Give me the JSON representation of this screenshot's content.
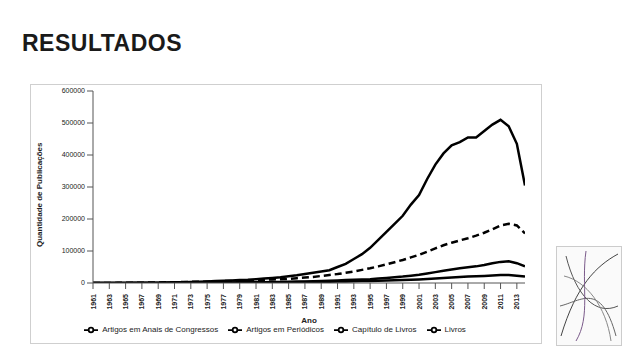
{
  "title": "RESULTADOS",
  "chart_data": {
    "type": "line",
    "x_label": "Ano",
    "y_label": "Quantidade de Publicações",
    "x": [
      1961,
      1962,
      1963,
      1964,
      1965,
      1966,
      1967,
      1968,
      1969,
      1970,
      1971,
      1972,
      1973,
      1974,
      1975,
      1976,
      1977,
      1978,
      1979,
      1980,
      1981,
      1982,
      1983,
      1984,
      1985,
      1986,
      1987,
      1988,
      1989,
      1990,
      1991,
      1992,
      1993,
      1994,
      1995,
      1996,
      1997,
      1998,
      1999,
      2000,
      2001,
      2002,
      2003,
      2004,
      2005,
      2006,
      2007,
      2008,
      2009,
      2010,
      2011,
      2012,
      2013,
      2014
    ],
    "xlim": [
      1961,
      2014
    ],
    "xticks": [
      1961,
      1963,
      1965,
      1967,
      1969,
      1971,
      1973,
      1975,
      1977,
      1979,
      1981,
      1983,
      1985,
      1987,
      1989,
      1991,
      1993,
      1995,
      1997,
      1999,
      2001,
      2003,
      2005,
      2007,
      2009,
      2011,
      2013
    ],
    "ylim": [
      0,
      600000
    ],
    "yticks": [
      0,
      100000,
      200000,
      300000,
      400000,
      500000,
      600000
    ],
    "grid": false,
    "legend": "bottom",
    "series": [
      {
        "name": "Artigos em Anais de Congressos",
        "color": "#000000",
        "line_style": "solid",
        "values": [
          0,
          0,
          0,
          0,
          0,
          500,
          500,
          1000,
          1000,
          1500,
          2000,
          2500,
          3000,
          4000,
          5000,
          6000,
          7000,
          8000,
          9000,
          10000,
          12000,
          14000,
          16000,
          18000,
          21000,
          24000,
          28000,
          32000,
          36000,
          40000,
          50000,
          60000,
          75000,
          90000,
          110000,
          135000,
          160000,
          185000,
          210000,
          245000,
          275000,
          325000,
          370000,
          405000,
          430000,
          440000,
          455000,
          455000,
          475000,
          495000,
          510000,
          490000,
          435000,
          305000
        ]
      },
      {
        "name": "Artigos em Periódicos",
        "color": "#000000",
        "line_style": "dashed",
        "values": [
          0,
          0,
          0,
          500,
          500,
          1000,
          1000,
          1500,
          1500,
          2000,
          2500,
          3000,
          3500,
          4000,
          4500,
          5000,
          6000,
          6500,
          7000,
          8000,
          9000,
          10000,
          11000,
          12000,
          13000,
          15000,
          17000,
          19000,
          22000,
          25000,
          28000,
          32000,
          36000,
          41000,
          46000,
          52000,
          58000,
          65000,
          72000,
          80000,
          88000,
          98000,
          108000,
          118000,
          126000,
          133000,
          140000,
          148000,
          157000,
          168000,
          180000,
          185000,
          180000,
          155000
        ]
      },
      {
        "name": "Capítulo de Livros",
        "color": "#000000",
        "line_style": "solid",
        "values": [
          0,
          0,
          0,
          0,
          0,
          0,
          0,
          0,
          0,
          500,
          500,
          500,
          1000,
          1000,
          1000,
          1000,
          1500,
          1500,
          2000,
          2000,
          2500,
          2500,
          3000,
          3500,
          4000,
          4500,
          5000,
          5500,
          6000,
          7000,
          8000,
          9000,
          10000,
          11000,
          12000,
          14000,
          16000,
          18000,
          20000,
          23000,
          26000,
          30000,
          34000,
          38000,
          42000,
          46000,
          49000,
          52000,
          56000,
          62000,
          66000,
          68000,
          62000,
          52000
        ]
      },
      {
        "name": "Livros",
        "color": "#000000",
        "line_style": "solid",
        "values": [
          0,
          0,
          0,
          0,
          0,
          0,
          0,
          0,
          0,
          0,
          0,
          0,
          0,
          500,
          500,
          500,
          500,
          1000,
          1000,
          1000,
          1500,
          1500,
          2000,
          2000,
          2500,
          2500,
          3000,
          3000,
          3500,
          4000,
          4500,
          5000,
          5500,
          6000,
          6500,
          7000,
          8000,
          8500,
          9000,
          10000,
          11000,
          12500,
          14000,
          15500,
          17000,
          18500,
          20000,
          21000,
          22000,
          23500,
          25000,
          25000,
          23000,
          20000
        ]
      }
    ]
  }
}
